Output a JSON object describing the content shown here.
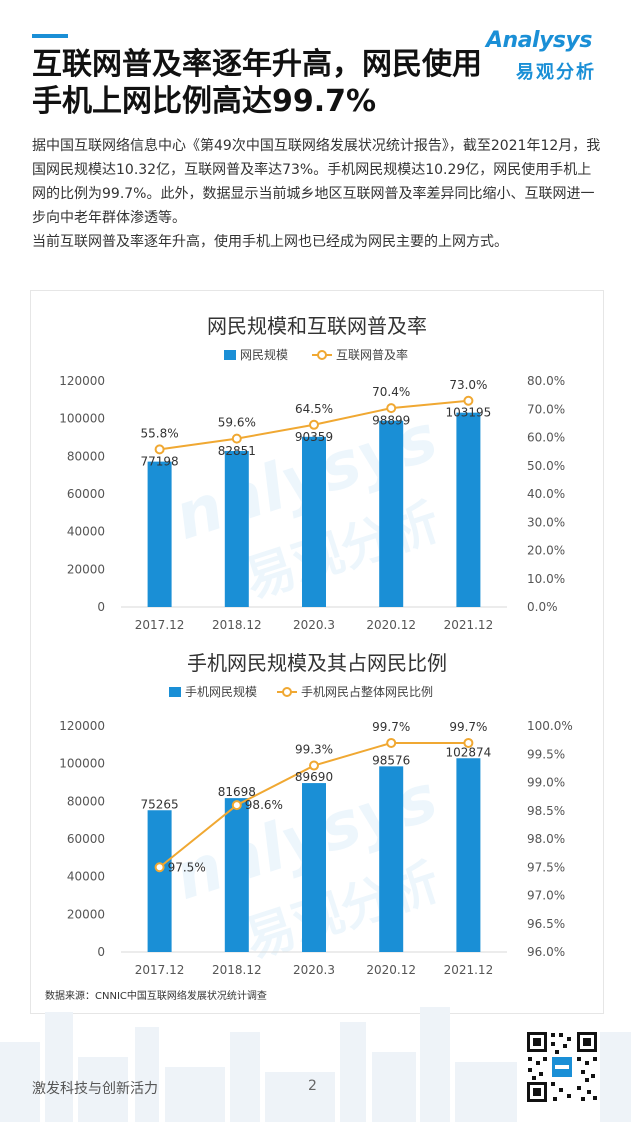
{
  "page": {
    "title": "互联网普及率逐年升高，网民使用手机上网比例高达99.7%",
    "intro": [
      "据中国互联网络信息中心《第49次中国互联网络发展状况统计报告》，截至2021年12月，我国网民规模达10.32亿，互联网普及率达73%。手机网民规模达10.29亿，网民使用手机上网的比例为99.7%。此外，数据显示当前城乡地区互联网普及率差异同比缩小、互联网进一步向中老年群体渗透等。",
      "当前互联网普及率逐年升高，使用手机上网也已经成为网民主要的上网方式。"
    ],
    "footer_slogan": "激发科技与创新活力",
    "page_number": "2"
  },
  "logo": {
    "en": "Analysys",
    "cn": "易观分析"
  },
  "accent_color": "#1a8fd6",
  "bar_color": "#1a8fd6",
  "line_color": "#f0a832",
  "icons": [
    "analysys-logo",
    "qr-code-icon",
    "city-skyline"
  ],
  "source": "数据来源：CNNIC中国互联网络发展状况统计调查",
  "chart_data": [
    {
      "type": "bar",
      "title": "网民规模和互联网普及率",
      "categories": [
        "2017.12",
        "2018.12",
        "2020.3",
        "2020.12",
        "2021.12"
      ],
      "series": [
        {
          "name": "网民规模",
          "kind": "bar",
          "axis": "left",
          "values": [
            77198,
            82851,
            90359,
            98899,
            103195
          ],
          "labels": [
            "77198",
            "82851",
            "90359",
            "98899",
            "103195"
          ]
        },
        {
          "name": "互联网普及率",
          "kind": "line",
          "axis": "right",
          "values": [
            55.8,
            59.6,
            64.5,
            70.4,
            73.0
          ],
          "labels": [
            "55.8%",
            "59.6%",
            "64.5%",
            "70.4%",
            "73.0%"
          ]
        }
      ],
      "ylim_left": [
        0,
        120000
      ],
      "yticks_left": [
        "0",
        "20000",
        "40000",
        "60000",
        "80000",
        "100000",
        "120000"
      ],
      "ylim_right": [
        0,
        80
      ],
      "yticks_right": [
        "0.0%",
        "10.0%",
        "20.0%",
        "30.0%",
        "40.0%",
        "50.0%",
        "60.0%",
        "70.0%",
        "80.0%"
      ],
      "legend": "top-center",
      "grid": false
    },
    {
      "type": "bar",
      "title": "手机网民规模及其占网民比例",
      "categories": [
        "2017.12",
        "2018.12",
        "2020.3",
        "2020.12",
        "2021.12"
      ],
      "series": [
        {
          "name": "手机网民规模",
          "kind": "bar",
          "axis": "left",
          "values": [
            75265,
            81698,
            89690,
            98576,
            102874
          ],
          "labels": [
            "75265",
            "81698",
            "89690",
            "98576",
            "102874"
          ]
        },
        {
          "name": "手机网民占整体网民比例",
          "kind": "line",
          "axis": "right",
          "values": [
            97.5,
            98.6,
            99.3,
            99.7,
            99.7
          ],
          "labels": [
            "97.5%",
            "98.6%",
            "99.3%",
            "99.7%",
            "99.7%"
          ]
        }
      ],
      "ylim_left": [
        0,
        120000
      ],
      "yticks_left": [
        "0",
        "20000",
        "40000",
        "60000",
        "80000",
        "100000",
        "120000"
      ],
      "ylim_right": [
        96,
        100
      ],
      "yticks_right": [
        "96.0%",
        "96.5%",
        "97.0%",
        "97.5%",
        "98.0%",
        "98.5%",
        "99.0%",
        "99.5%",
        "100.0%"
      ],
      "legend": "top-center",
      "grid": false
    }
  ]
}
